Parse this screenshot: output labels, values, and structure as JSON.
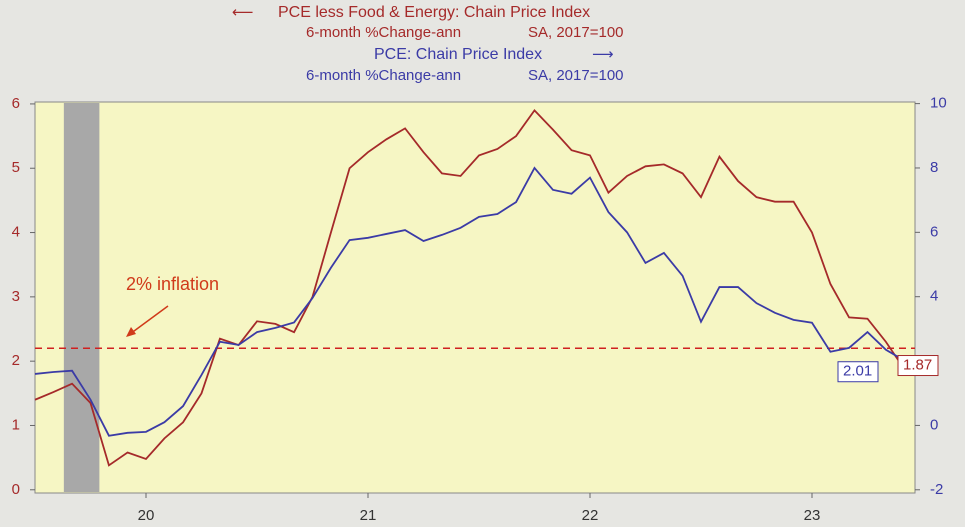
{
  "chart_data": {
    "type": "line",
    "series": [
      {
        "name": "PCE less Food & Energy: Chain Price Index",
        "units": "6-month %Change-ann",
        "adjustment": "SA, 2017=100",
        "color": "#a52a2a",
        "axis": "y",
        "values": [
          1.4,
          1.52,
          1.65,
          1.35,
          0.38,
          0.58,
          0.48,
          0.8,
          1.05,
          1.5,
          2.35,
          2.25,
          2.62,
          2.58,
          2.45,
          3.0,
          4.0,
          5.0,
          5.25,
          5.45,
          5.62,
          5.25,
          4.92,
          4.88,
          5.2,
          5.3,
          5.5,
          5.9,
          5.6,
          5.28,
          5.2,
          4.62,
          4.88,
          5.03,
          5.06,
          4.92,
          4.55,
          5.18,
          4.8,
          4.55,
          4.48,
          4.48,
          4.0,
          3.2,
          2.68,
          2.66,
          2.3,
          1.87
        ]
      },
      {
        "name": "PCE: Chain Price Index",
        "units": "6-month %Change-ann",
        "adjustment": "SA, 2017=100",
        "color": "#3b3ba6",
        "axis": "y2",
        "values": [
          1.6,
          1.66,
          1.7,
          0.8,
          -0.32,
          -0.23,
          -0.2,
          0.1,
          0.6,
          1.57,
          2.6,
          2.5,
          2.9,
          3.03,
          3.2,
          3.96,
          4.9,
          5.76,
          5.83,
          5.95,
          6.07,
          5.73,
          5.92,
          6.14,
          6.48,
          6.57,
          6.94,
          8.0,
          7.32,
          7.2,
          7.7,
          6.63,
          6.0,
          5.05,
          5.36,
          4.65,
          3.22,
          4.3,
          4.3,
          3.8,
          3.5,
          3.28,
          3.19,
          2.29,
          2.41,
          2.9,
          2.35,
          2.01
        ]
      }
    ],
    "x": [
      2020.0,
      2020.083,
      2020.167,
      2020.25,
      2020.333,
      2020.417,
      2020.5,
      2020.583,
      2020.667,
      2020.75,
      2020.833,
      2020.917,
      2021.0,
      2021.083,
      2021.167,
      2021.25,
      2021.333,
      2021.417,
      2021.5,
      2021.583,
      2021.667,
      2021.75,
      2021.833,
      2021.917,
      2022.0,
      2022.083,
      2022.167,
      2022.25,
      2022.333,
      2022.417,
      2022.5,
      2022.583,
      2022.667,
      2022.75,
      2022.833,
      2022.917,
      2023.0,
      2023.083,
      2023.167,
      2023.25,
      2023.333,
      2023.417,
      2023.5,
      2023.583,
      2023.667,
      2023.75,
      2023.833,
      2023.917
    ],
    "xlim": [
      2020.0,
      2023.964
    ],
    "xticks": [
      {
        "value": 2020.5,
        "label": "20"
      },
      {
        "value": 2021.5,
        "label": "21"
      },
      {
        "value": 2022.5,
        "label": "22"
      },
      {
        "value": 2023.5,
        "label": "23"
      }
    ],
    "ylim": [
      -0.05,
      6.03
    ],
    "yticks": [
      0,
      1,
      2,
      3,
      4,
      5,
      6
    ],
    "y2lim": [
      -2.1,
      10.05
    ],
    "y2ticks": [
      -2,
      0,
      2,
      4,
      6,
      8,
      10
    ],
    "shaded_period": [
      2020.13,
      2020.29
    ],
    "reference_line": {
      "label": "2% inflation",
      "value": 2.2
    }
  }
}
